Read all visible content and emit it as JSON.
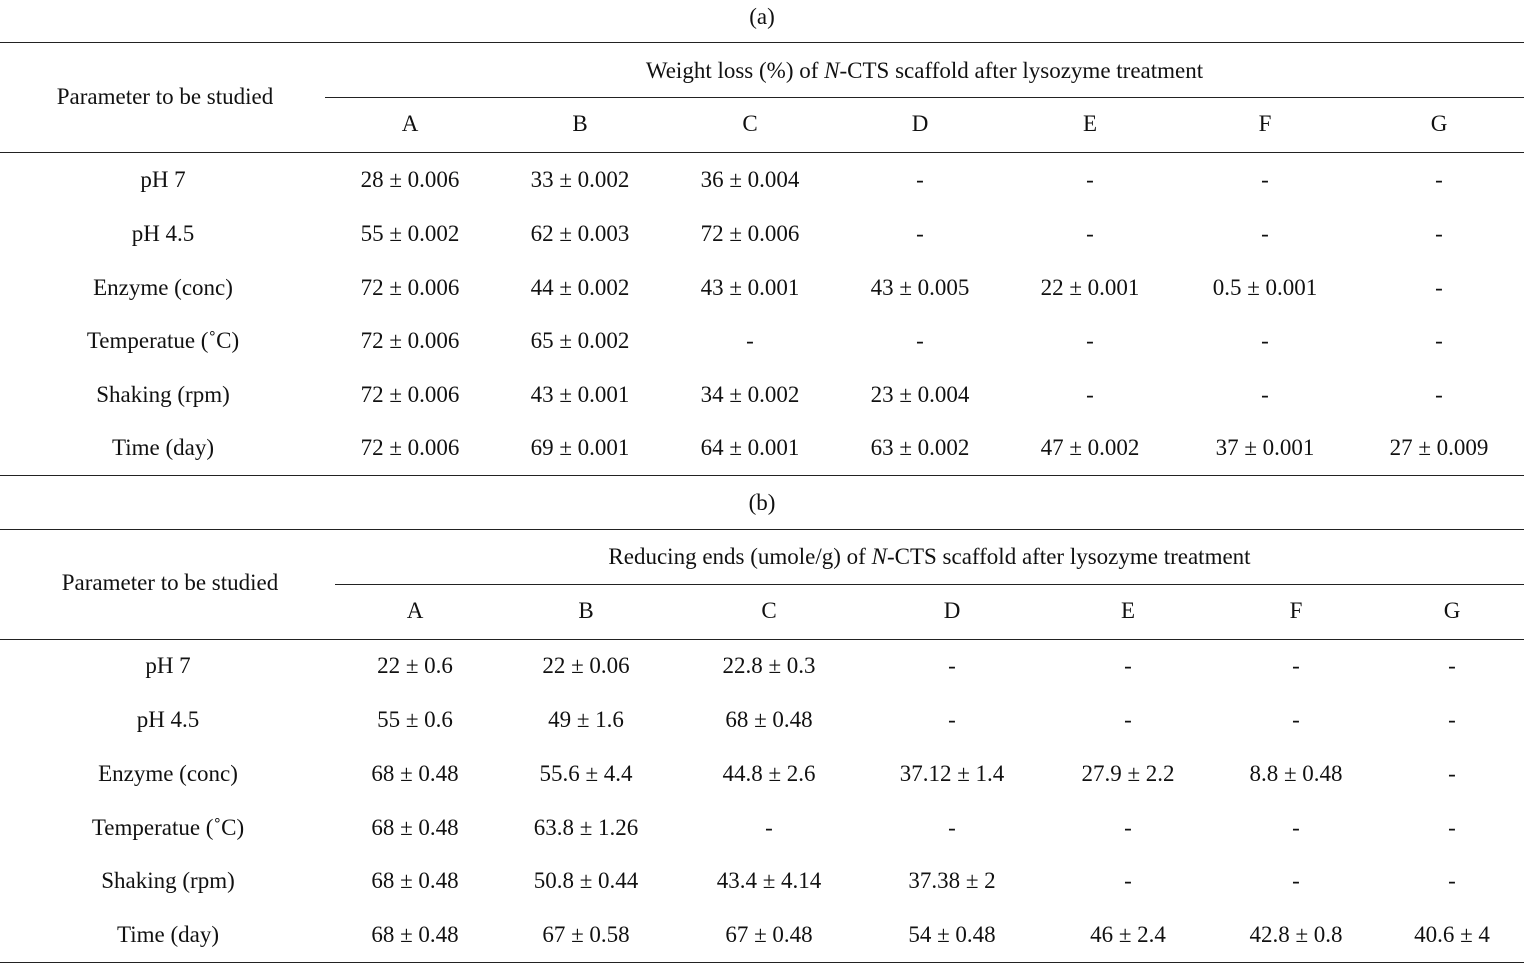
{
  "table_a": {
    "caption": "(a)",
    "param_header": "Parameter to be studied",
    "group_header_pre": "Weight loss (%) of ",
    "group_header_italic": "N",
    "group_header_post": "-CTS scaffold after lysozyme treatment",
    "columns": [
      "A",
      "B",
      "C",
      "D",
      "E",
      "F",
      "G"
    ],
    "rows": [
      {
        "label": "pH 7",
        "cells": [
          "28 ± 0.006",
          "33 ± 0.002",
          "36 ± 0.004",
          "-",
          "-",
          "-",
          "-"
        ]
      },
      {
        "label": "pH 4.5",
        "cells": [
          "55 ± 0.002",
          "62 ± 0.003",
          "72 ± 0.006",
          "-",
          "-",
          "-",
          "-"
        ]
      },
      {
        "label": "Enzyme (conc)",
        "cells": [
          "72 ± 0.006",
          "44 ± 0.002",
          "43 ± 0.001",
          "43 ± 0.005",
          "22 ± 0.001",
          "0.5 ± 0.001",
          "-"
        ]
      },
      {
        "label": "Temperatue (˚C)",
        "cells": [
          "72 ± 0.006",
          "65 ± 0.002",
          "-",
          "-",
          "-",
          "-",
          "-"
        ]
      },
      {
        "label": "Shaking (rpm)",
        "cells": [
          "72 ± 0.006",
          "43 ± 0.001",
          "34 ± 0.002",
          "23 ± 0.004",
          "-",
          "-",
          "-"
        ]
      },
      {
        "label": "Time (day)",
        "cells": [
          "72 ± 0.006",
          "69 ± 0.001",
          "64 ± 0.001",
          "63 ± 0.002",
          "47 ± 0.002",
          "37 ± 0.001",
          "27 ± 0.009"
        ]
      }
    ]
  },
  "table_b": {
    "caption": "(b)",
    "param_header": "Parameter to be studied",
    "group_header_pre": "Reducing ends (umole/g) of ",
    "group_header_italic": "N",
    "group_header_post": "-CTS scaffold after lysozyme treatment",
    "columns": [
      "A",
      "B",
      "C",
      "D",
      "E",
      "F",
      "G"
    ],
    "rows": [
      {
        "label": "pH 7",
        "cells": [
          "22 ± 0.6",
          "22 ± 0.06",
          "22.8 ± 0.3",
          "-",
          "-",
          "-",
          "-"
        ]
      },
      {
        "label": "pH 4.5",
        "cells": [
          "55 ± 0.6",
          "49 ± 1.6",
          "68 ± 0.48",
          "-",
          "-",
          "-",
          "-"
        ]
      },
      {
        "label": "Enzyme (conc)",
        "cells": [
          "68 ± 0.48",
          "55.6 ± 4.4",
          "44.8 ± 2.6",
          "37.12 ± 1.4",
          "27.9 ± 2.2",
          "8.8 ± 0.48",
          "-"
        ]
      },
      {
        "label": "Temperatue (˚C)",
        "cells": [
          "68 ± 0.48",
          "63.8 ± 1.26",
          "-",
          "-",
          "-",
          "-",
          "-"
        ]
      },
      {
        "label": "Shaking (rpm)",
        "cells": [
          "68 ± 0.48",
          "50.8 ± 0.44",
          "43.4 ± 4.14",
          "37.38 ± 2",
          "-",
          "-",
          "-"
        ]
      },
      {
        "label": "Time (day)",
        "cells": [
          "68 ± 0.48",
          "67 ± 0.58",
          "67 ± 0.48",
          "54 ± 0.48",
          "46 ± 2.4",
          "42.8 ± 0.8",
          "40.6 ± 4"
        ]
      }
    ]
  }
}
